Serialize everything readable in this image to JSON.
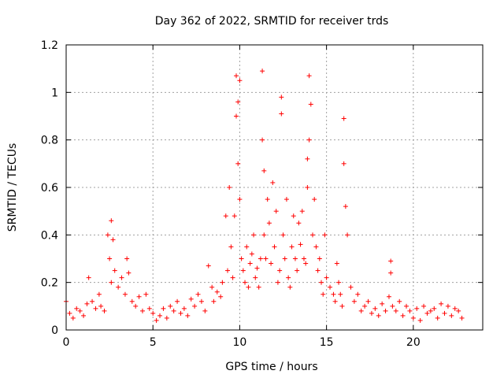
{
  "chart_data": {
    "type": "scatter",
    "title": "Day 362 of 2022, SRMTID for receiver trds",
    "xlabel": "GPS time / hours",
    "ylabel": "SRMTID / TECUs",
    "xlim": [
      0,
      24
    ],
    "ylim": [
      0,
      1.2
    ],
    "xticks": [
      0,
      5,
      10,
      15,
      20
    ],
    "xtick_labels": [
      "0",
      "5",
      "10",
      "15",
      "20"
    ],
    "yticks": [
      0,
      0.2,
      0.4,
      0.6,
      0.8,
      1,
      1.2
    ],
    "ytick_labels": [
      "0",
      "0.2",
      "0.4",
      "0.6",
      "0.8",
      "1",
      "1.2"
    ],
    "grid": true,
    "marker": "+",
    "series": [
      {
        "name": "SRMTID",
        "color": "#ff0000",
        "x": [
          0.0,
          0.2,
          0.4,
          0.6,
          0.8,
          1.0,
          1.2,
          1.3,
          1.5,
          1.7,
          1.9,
          2.0,
          2.2,
          2.4,
          2.5,
          2.6,
          2.6,
          2.7,
          2.8,
          3.0,
          3.2,
          3.4,
          3.5,
          3.6,
          3.8,
          4.0,
          4.2,
          4.4,
          4.6,
          4.8,
          5.0,
          5.2,
          5.4,
          5.6,
          5.8,
          6.0,
          6.2,
          6.4,
          6.6,
          6.8,
          7.0,
          7.2,
          7.4,
          7.6,
          7.8,
          8.0,
          8.2,
          8.4,
          8.5,
          8.7,
          8.9,
          9.0,
          9.2,
          9.3,
          9.4,
          9.5,
          9.6,
          9.7,
          9.8,
          9.8,
          9.9,
          9.9,
          10.0,
          10.0,
          10.1,
          10.2,
          10.3,
          10.4,
          10.5,
          10.6,
          10.7,
          10.8,
          10.9,
          11.0,
          11.1,
          11.2,
          11.3,
          11.3,
          11.4,
          11.4,
          11.5,
          11.6,
          11.7,
          11.8,
          11.9,
          12.0,
          12.1,
          12.2,
          12.3,
          12.4,
          12.4,
          12.5,
          12.6,
          12.7,
          12.8,
          12.9,
          13.0,
          13.1,
          13.2,
          13.3,
          13.4,
          13.5,
          13.6,
          13.7,
          13.8,
          13.9,
          13.9,
          14.0,
          14.0,
          14.1,
          14.2,
          14.3,
          14.4,
          14.5,
          14.6,
          14.7,
          14.8,
          14.9,
          15.0,
          15.2,
          15.4,
          15.5,
          15.6,
          15.7,
          15.8,
          15.9,
          16.0,
          16.0,
          16.1,
          16.2,
          16.4,
          16.6,
          16.8,
          17.0,
          17.2,
          17.4,
          17.6,
          17.8,
          18.0,
          18.2,
          18.4,
          18.6,
          18.7,
          18.7,
          18.8,
          19.0,
          19.2,
          19.4,
          19.6,
          19.8,
          20.0,
          20.2,
          20.4,
          20.6,
          20.8,
          21.0,
          21.2,
          21.4,
          21.6,
          21.8,
          22.0,
          22.2,
          22.4,
          22.6,
          22.8
        ],
        "y": [
          0.12,
          0.07,
          0.05,
          0.09,
          0.08,
          0.06,
          0.11,
          0.22,
          0.12,
          0.09,
          0.15,
          0.1,
          0.08,
          0.4,
          0.3,
          0.46,
          0.2,
          0.38,
          0.25,
          0.18,
          0.22,
          0.15,
          0.3,
          0.24,
          0.12,
          0.1,
          0.14,
          0.08,
          0.15,
          0.09,
          0.07,
          0.04,
          0.06,
          0.09,
          0.05,
          0.1,
          0.08,
          0.12,
          0.07,
          0.09,
          0.06,
          0.13,
          0.1,
          0.15,
          0.12,
          0.08,
          0.27,
          0.18,
          0.12,
          0.16,
          0.14,
          0.2,
          0.48,
          0.25,
          0.6,
          0.35,
          0.22,
          0.48,
          0.9,
          1.07,
          0.96,
          0.7,
          1.05,
          0.55,
          0.3,
          0.25,
          0.2,
          0.35,
          0.18,
          0.28,
          0.32,
          0.4,
          0.22,
          0.26,
          0.18,
          0.3,
          0.8,
          1.09,
          0.67,
          0.4,
          0.3,
          0.55,
          0.45,
          0.28,
          0.62,
          0.35,
          0.5,
          0.2,
          0.25,
          0.98,
          0.91,
          0.4,
          0.3,
          0.55,
          0.22,
          0.18,
          0.35,
          0.48,
          0.3,
          0.25,
          0.45,
          0.36,
          0.5,
          0.3,
          0.28,
          0.6,
          0.72,
          1.07,
          0.8,
          0.95,
          0.4,
          0.55,
          0.35,
          0.25,
          0.3,
          0.2,
          0.15,
          0.4,
          0.22,
          0.18,
          0.15,
          0.12,
          0.28,
          0.2,
          0.15,
          0.1,
          0.89,
          0.7,
          0.52,
          0.4,
          0.18,
          0.12,
          0.15,
          0.08,
          0.1,
          0.12,
          0.07,
          0.09,
          0.06,
          0.11,
          0.08,
          0.14,
          0.29,
          0.24,
          0.1,
          0.08,
          0.12,
          0.06,
          0.1,
          0.08,
          0.05,
          0.09,
          0.04,
          0.1,
          0.07,
          0.08,
          0.09,
          0.05,
          0.11,
          0.07,
          0.1,
          0.06,
          0.09,
          0.08,
          0.05
        ]
      }
    ]
  }
}
